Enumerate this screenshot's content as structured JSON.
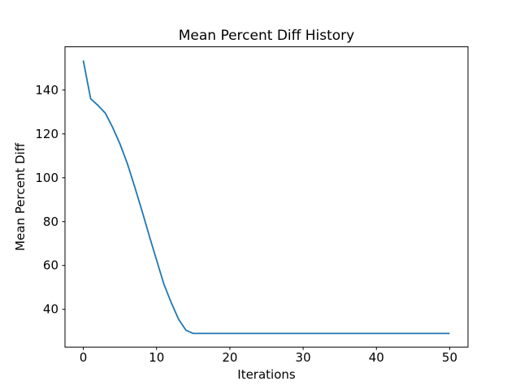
{
  "chart_data": {
    "type": "line",
    "title": "Mean Percent Diff History",
    "xlabel": "Iterations",
    "ylabel": "Mean Percent Diff",
    "x": [
      0,
      1,
      2,
      3,
      4,
      5,
      6,
      7,
      8,
      9,
      10,
      11,
      12,
      13,
      14,
      15,
      16,
      17,
      18,
      19,
      20,
      21,
      22,
      23,
      24,
      25,
      26,
      27,
      28,
      29,
      30,
      31,
      32,
      33,
      34,
      35,
      36,
      37,
      38,
      39,
      40,
      41,
      42,
      43,
      44,
      45,
      46,
      47,
      48,
      49,
      50
    ],
    "y": [
      153.5,
      136.0,
      133.0,
      129.5,
      123.0,
      115.5,
      106.5,
      96.0,
      85.0,
      73.5,
      62.5,
      51.5,
      43.0,
      35.5,
      30.5,
      29.0,
      29.0,
      29.0,
      29.0,
      29.0,
      29.0,
      29.0,
      29.0,
      29.0,
      29.0,
      29.0,
      29.0,
      29.0,
      29.0,
      29.0,
      29.0,
      29.0,
      29.0,
      29.0,
      29.0,
      29.0,
      29.0,
      29.0,
      29.0,
      29.0,
      29.0,
      29.0,
      29.0,
      29.0,
      29.0,
      29.0,
      29.0,
      29.0,
      29.0,
      29.0,
      29.0
    ],
    "xlim": [
      -2.5,
      52.5
    ],
    "ylim": [
      22.775,
      159.725
    ],
    "xticks": [
      0,
      10,
      20,
      30,
      40,
      50
    ],
    "yticks": [
      40,
      60,
      80,
      100,
      120,
      140
    ],
    "line_color": "#1f77b4",
    "spine_color": "#000000",
    "background_color": "#ffffff",
    "grid": false,
    "legend_position": "none"
  }
}
